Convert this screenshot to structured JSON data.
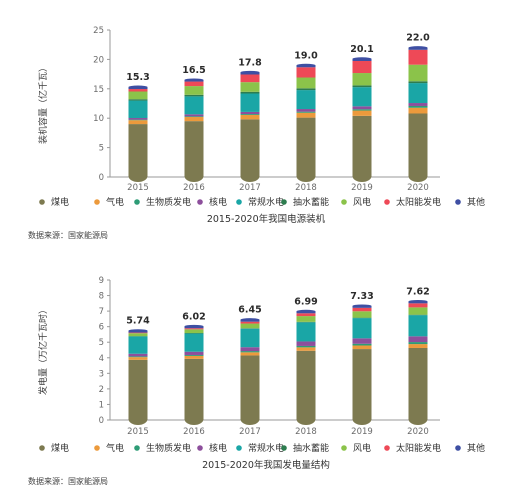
{
  "charts": [
    {
      "source": "数据来源：国家能源局",
      "chart_data": {
        "type": "bar",
        "stacked": true,
        "title": "2015-2020年我国电源装机",
        "ylabel": "装机容量（亿千瓦）",
        "xlabel": "",
        "ylim": [
          0,
          25
        ],
        "yticks": [
          "0",
          "5",
          "10",
          "15",
          "20",
          "25"
        ],
        "categories": [
          "2015",
          "2016",
          "2017",
          "2018",
          "2019",
          "2020"
        ],
        "totals": [
          "15.3",
          "16.5",
          "17.8",
          "19.0",
          "20.1",
          "22.0"
        ],
        "legend_position": "bottom",
        "series": [
          {
            "name": "煤电",
            "color": "#7d7a50",
            "values": [
              9.0,
              9.5,
              9.8,
              10.1,
              10.4,
              10.8
            ]
          },
          {
            "name": "气电",
            "color": "#ec9a3c",
            "values": [
              0.66,
              0.7,
              0.76,
              0.83,
              0.9,
              0.98
            ]
          },
          {
            "name": "生物质发电",
            "color": "#2e9c76",
            "values": [
              0.1,
              0.12,
              0.15,
              0.18,
              0.23,
              0.3
            ]
          },
          {
            "name": "核电",
            "color": "#8d4f9c",
            "values": [
              0.27,
              0.34,
              0.36,
              0.45,
              0.49,
              0.5
            ]
          },
          {
            "name": "常规水电",
            "color": "#1aa6a6",
            "values": [
              2.97,
              3.05,
              3.13,
              3.22,
              3.26,
              3.39
            ]
          },
          {
            "name": "抽水蓄能",
            "color": "#2d7d4f",
            "values": [
              0.23,
              0.27,
              0.29,
              0.3,
              0.3,
              0.31
            ]
          },
          {
            "name": "风电",
            "color": "#8bc34a",
            "values": [
              1.31,
              1.48,
              1.64,
              1.84,
              2.1,
              2.82
            ]
          },
          {
            "name": "太阳能发电",
            "color": "#ee4957",
            "values": [
              0.42,
              0.77,
              1.3,
              1.74,
              2.05,
              2.53
            ]
          },
          {
            "name": "其他",
            "color": "#3e4fa3",
            "values": [
              0.34,
              0.27,
              0.37,
              0.34,
              0.37,
              0.37
            ]
          }
        ]
      }
    },
    {
      "source": "数据来源：国家能源局",
      "chart_data": {
        "type": "bar",
        "stacked": true,
        "title": "2015-2020年我国发电量结构",
        "ylabel": "发电量（万亿千瓦时）",
        "xlabel": "",
        "ylim": [
          0,
          9
        ],
        "yticks": [
          "0",
          "1",
          "2",
          "3",
          "4",
          "5",
          "6",
          "7",
          "8",
          "9"
        ],
        "categories": [
          "2015",
          "2016",
          "2017",
          "2018",
          "2019",
          "2020"
        ],
        "totals": [
          "5.74",
          "6.02",
          "6.45",
          "6.99",
          "7.33",
          "7.62"
        ],
        "legend_position": "bottom",
        "series": [
          {
            "name": "煤电",
            "color": "#7d7a50",
            "values": [
              3.87,
              3.93,
              4.15,
              4.45,
              4.56,
              4.63
            ]
          },
          {
            "name": "气电",
            "color": "#ec9a3c",
            "values": [
              0.17,
              0.19,
              0.2,
              0.22,
              0.23,
              0.25
            ]
          },
          {
            "name": "生物质发电",
            "color": "#2e9c76",
            "values": [
              0.05,
              0.06,
              0.08,
              0.09,
              0.11,
              0.13
            ]
          },
          {
            "name": "核电",
            "color": "#8d4f9c",
            "values": [
              0.17,
              0.21,
              0.25,
              0.29,
              0.35,
              0.37
            ]
          },
          {
            "name": "常规水电",
            "color": "#1aa6a6",
            "values": [
              1.11,
              1.17,
              1.19,
              1.23,
              1.3,
              1.36
            ]
          },
          {
            "name": "抽水蓄能",
            "color": "#2d7d4f",
            "values": [
              0.02,
              0.03,
              0.03,
              0.03,
              0.03,
              0.03
            ]
          },
          {
            "name": "风电",
            "color": "#8bc34a",
            "values": [
              0.19,
              0.24,
              0.3,
              0.37,
              0.41,
              0.47
            ]
          },
          {
            "name": "太阳能发电",
            "color": "#ee4957",
            "values": [
              0.04,
              0.07,
              0.12,
              0.18,
              0.22,
              0.26
            ]
          },
          {
            "name": "其他",
            "color": "#3e4fa3",
            "values": [
              0.12,
              0.12,
              0.13,
              0.13,
              0.12,
              0.12
            ]
          }
        ]
      }
    }
  ]
}
